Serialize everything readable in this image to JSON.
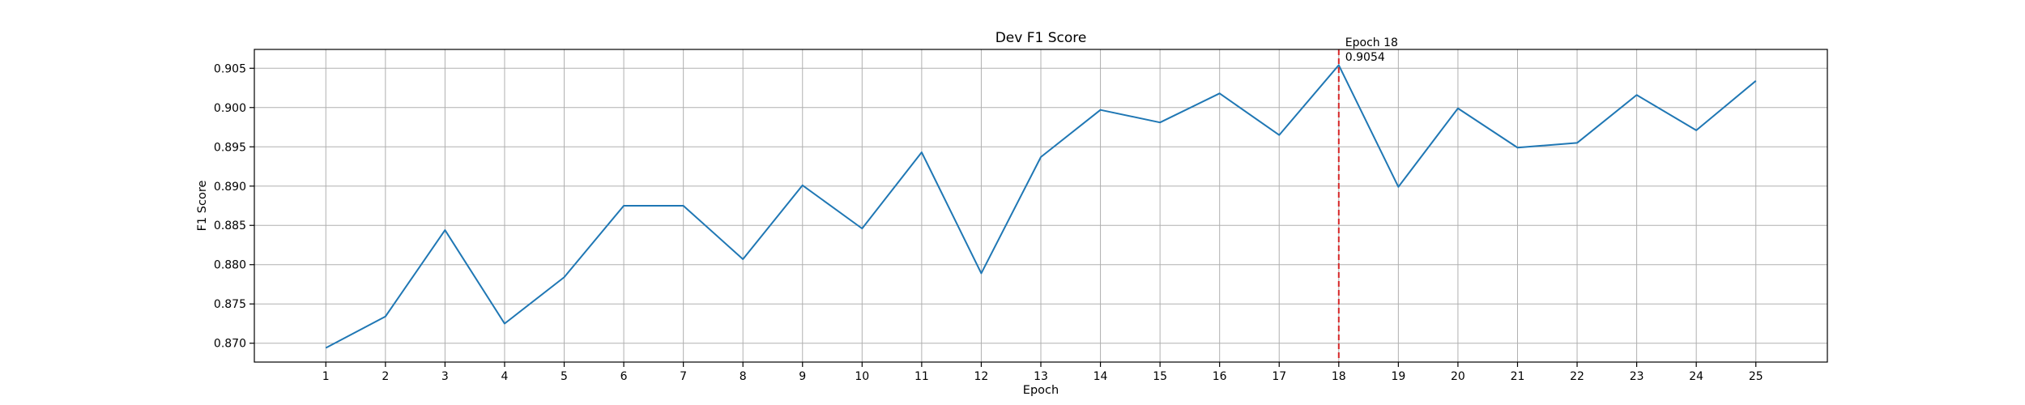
{
  "chart_data": {
    "type": "line",
    "title": "Dev F1 Score",
    "xlabel": "Epoch",
    "ylabel": "F1 Score",
    "x": [
      1,
      2,
      3,
      4,
      5,
      6,
      7,
      8,
      9,
      10,
      11,
      12,
      13,
      14,
      15,
      16,
      17,
      18,
      19,
      20,
      21,
      22,
      23,
      24,
      25
    ],
    "xlim": [
      -0.2,
      26.2
    ],
    "ylim": [
      0.8676,
      0.9074
    ],
    "yticks": [
      0.87,
      0.875,
      0.88,
      0.885,
      0.89,
      0.895,
      0.9,
      0.905
    ],
    "ytick_labels": [
      "0.870",
      "0.875",
      "0.880",
      "0.885",
      "0.890",
      "0.895",
      "0.900",
      "0.905"
    ],
    "grid": true,
    "series": [
      {
        "name": "",
        "color": "#1f77b4",
        "values": [
          0.8694,
          0.8734,
          0.8844,
          0.8725,
          0.8784,
          0.8875,
          0.8875,
          0.8807,
          0.8901,
          0.8846,
          0.8943,
          0.8789,
          0.8937,
          0.8997,
          0.8981,
          0.9018,
          0.8965,
          0.9054,
          0.8899,
          0.8999,
          0.8949,
          0.8955,
          0.9016,
          0.8971,
          0.9034
        ]
      }
    ],
    "annotation": {
      "x": 18,
      "line_color": "#d62728",
      "line_style": "dashed",
      "text_line1": "Epoch 18",
      "text_line2": "0.9054"
    }
  }
}
